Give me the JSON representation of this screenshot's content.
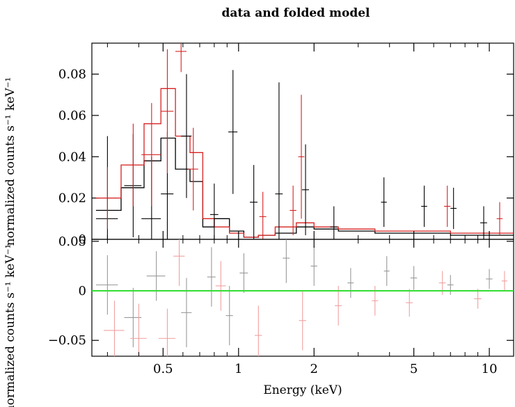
{
  "title": "data and folded model",
  "chart_data": [
    {
      "type": "scatter",
      "panel": "top",
      "ylabel": "normalized counts s⁻¹ keV⁻¹",
      "xscale": "log",
      "xlim": [
        0.26,
        12.5
      ],
      "ylim": [
        0,
        0.095
      ],
      "yticks": [
        0,
        0.02,
        0.04,
        0.06,
        0.08
      ],
      "ytick_labels": [
        "0",
        "0.02",
        "0.04",
        "0.06",
        "0.08"
      ],
      "series": [
        {
          "color": "#000000",
          "points": [
            {
              "x": 0.3,
              "y": 0.01,
              "xerr": 0.03,
              "yerr": 0.04
            },
            {
              "x": 0.38,
              "y": 0.026,
              "xerr": 0.03,
              "yerr": 0.025
            },
            {
              "x": 0.45,
              "y": 0.01,
              "xerr": 0.04,
              "yerr": 0.03
            },
            {
              "x": 0.52,
              "y": 0.022,
              "xerr": 0.03,
              "yerr": 0.03
            },
            {
              "x": 0.62,
              "y": 0.05,
              "xerr": 0.03,
              "yerr": 0.03
            },
            {
              "x": 0.8,
              "y": 0.012,
              "xerr": 0.03,
              "yerr": 0.015
            },
            {
              "x": 0.95,
              "y": 0.052,
              "xerr": 0.04,
              "yerr": 0.03
            },
            {
              "x": 1.15,
              "y": 0.018,
              "xerr": 0.04,
              "yerr": 0.018
            },
            {
              "x": 1.45,
              "y": 0.022,
              "xerr": 0.05,
              "yerr": 0.054
            },
            {
              "x": 1.85,
              "y": 0.024,
              "xerr": 0.06,
              "yerr": 0.022
            },
            {
              "x": 2.4,
              "y": 0.006,
              "xerr": 0.08,
              "yerr": 0.01
            },
            {
              "x": 3.8,
              "y": 0.018,
              "xerr": 0.1,
              "yerr": 0.012
            },
            {
              "x": 5.5,
              "y": 0.016,
              "xerr": 0.15,
              "yerr": 0.01
            },
            {
              "x": 7.2,
              "y": 0.015,
              "xerr": 0.2,
              "yerr": 0.01
            },
            {
              "x": 9.5,
              "y": 0.008,
              "xerr": 0.3,
              "yerr": 0.008
            }
          ],
          "model": {
            "x": [
              0.27,
              0.34,
              0.42,
              0.49,
              0.56,
              0.64,
              0.72,
              0.8,
              0.92,
              1.05,
              1.2,
              1.4,
              1.7,
              2.0,
              2.5,
              3.5,
              5.0,
              7.0,
              10.0,
              12.5
            ],
            "y": [
              0.014,
              0.025,
              0.038,
              0.049,
              0.034,
              0.028,
              0.006,
              0.01,
              0.004,
              0.001,
              0.002,
              0.003,
              0.006,
              0.005,
              0.004,
              0.003,
              0.003,
              0.002,
              0.002,
              0.002
            ]
          }
        },
        {
          "color": "#d62020",
          "points": [
            {
              "x": 0.3,
              "y": 0.02,
              "xerr": 0.03,
              "yerr": 0.015
            },
            {
              "x": 0.38,
              "y": 0.036,
              "xerr": 0.03,
              "yerr": 0.02
            },
            {
              "x": 0.45,
              "y": 0.041,
              "xerr": 0.04,
              "yerr": 0.025
            },
            {
              "x": 0.52,
              "y": 0.062,
              "xerr": 0.03,
              "yerr": 0.03
            },
            {
              "x": 0.59,
              "y": 0.091,
              "xerr": 0.03,
              "yerr": 0.01
            },
            {
              "x": 0.66,
              "y": 0.034,
              "xerr": 0.03,
              "yerr": 0.02
            },
            {
              "x": 1.25,
              "y": 0.011,
              "xerr": 0.04,
              "yerr": 0.012
            },
            {
              "x": 1.65,
              "y": 0.014,
              "xerr": 0.05,
              "yerr": 0.012
            },
            {
              "x": 1.78,
              "y": 0.04,
              "xerr": 0.05,
              "yerr": 0.03
            },
            {
              "x": 6.8,
              "y": 0.016,
              "xerr": 0.2,
              "yerr": 0.01
            },
            {
              "x": 11.0,
              "y": 0.01,
              "xerr": 0.3,
              "yerr": 0.008
            }
          ],
          "model": {
            "x": [
              0.27,
              0.34,
              0.42,
              0.49,
              0.56,
              0.64,
              0.72,
              0.8,
              0.92,
              1.05,
              1.2,
              1.4,
              1.7,
              2.0,
              2.5,
              3.5,
              5.0,
              7.0,
              10.0,
              12.5
            ],
            "y": [
              0.02,
              0.036,
              0.056,
              0.073,
              0.05,
              0.042,
              0.01,
              0.006,
              0.003,
              0.001,
              0.002,
              0.006,
              0.008,
              0.006,
              0.005,
              0.004,
              0.004,
              0.003,
              0.003,
              0.003
            ]
          }
        }
      ]
    },
    {
      "type": "scatter",
      "panel": "bottom",
      "ylabel": "normalized counts s⁻¹ keV⁻¹",
      "xlabel": "Energy (keV)",
      "xscale": "log",
      "xlim": [
        0.26,
        12.5
      ],
      "ylim": [
        -0.066,
        0.052
      ],
      "yticks": [
        -0.05,
        0,
        0.05
      ],
      "ytick_labels": [
        "−0.05",
        "0",
        "0.05"
      ],
      "xticks": [
        0.5,
        1,
        2,
        5,
        10
      ],
      "xtick_labels": [
        "0.5",
        "1",
        "2",
        "5",
        "10"
      ],
      "zero_line_color": "#33dd33",
      "series": [
        {
          "color": "#999999",
          "points": [
            {
              "x": 0.3,
              "y": 0.006,
              "xerr": 0.03,
              "yerr": 0.03
            },
            {
              "x": 0.38,
              "y": -0.027,
              "xerr": 0.03,
              "yerr": 0.03
            },
            {
              "x": 0.47,
              "y": 0.015,
              "xerr": 0.04,
              "yerr": 0.025
            },
            {
              "x": 0.62,
              "y": -0.022,
              "xerr": 0.03,
              "yerr": 0.035
            },
            {
              "x": 0.78,
              "y": 0.014,
              "xerr": 0.03,
              "yerr": 0.03
            },
            {
              "x": 0.92,
              "y": -0.025,
              "xerr": 0.03,
              "yerr": 0.03
            },
            {
              "x": 1.05,
              "y": 0.018,
              "xerr": 0.04,
              "yerr": 0.02
            },
            {
              "x": 1.55,
              "y": 0.033,
              "xerr": 0.05,
              "yerr": 0.025
            },
            {
              "x": 2.0,
              "y": 0.025,
              "xerr": 0.06,
              "yerr": 0.02
            },
            {
              "x": 2.8,
              "y": 0.008,
              "xerr": 0.08,
              "yerr": 0.015
            },
            {
              "x": 3.9,
              "y": 0.02,
              "xerr": 0.1,
              "yerr": 0.015
            },
            {
              "x": 5.0,
              "y": 0.013,
              "xerr": 0.15,
              "yerr": 0.012
            },
            {
              "x": 7.0,
              "y": 0.006,
              "xerr": 0.2,
              "yerr": 0.01
            },
            {
              "x": 10.0,
              "y": 0.012,
              "xerr": 0.3,
              "yerr": 0.01
            }
          ]
        },
        {
          "color": "#f0a0a0",
          "points": [
            {
              "x": 0.32,
              "y": -0.04,
              "xerr": 0.03,
              "yerr": 0.03
            },
            {
              "x": 0.4,
              "y": -0.048,
              "xerr": 0.03,
              "yerr": 0.035
            },
            {
              "x": 0.52,
              "y": -0.048,
              "xerr": 0.04,
              "yerr": 0.03
            },
            {
              "x": 0.58,
              "y": 0.035,
              "xerr": 0.03,
              "yerr": 0.03
            },
            {
              "x": 0.85,
              "y": 0.005,
              "xerr": 0.04,
              "yerr": 0.025
            },
            {
              "x": 1.2,
              "y": -0.045,
              "xerr": 0.04,
              "yerr": 0.03
            },
            {
              "x": 1.8,
              "y": -0.03,
              "xerr": 0.06,
              "yerr": 0.03
            },
            {
              "x": 2.5,
              "y": -0.015,
              "xerr": 0.08,
              "yerr": 0.02
            },
            {
              "x": 3.5,
              "y": -0.01,
              "xerr": 0.1,
              "yerr": 0.015
            },
            {
              "x": 4.8,
              "y": -0.012,
              "xerr": 0.15,
              "yerr": 0.014
            },
            {
              "x": 6.5,
              "y": 0.008,
              "xerr": 0.2,
              "yerr": 0.012
            },
            {
              "x": 9.0,
              "y": -0.008,
              "xerr": 0.3,
              "yerr": 0.01
            },
            {
              "x": 11.5,
              "y": 0.01,
              "xerr": 0.3,
              "yerr": 0.01
            }
          ]
        }
      ]
    }
  ]
}
